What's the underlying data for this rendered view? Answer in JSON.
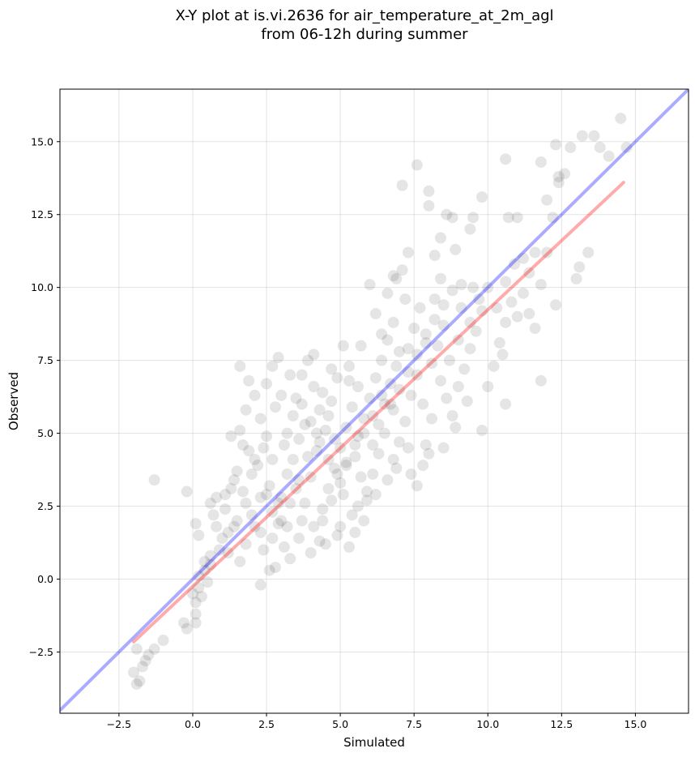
{
  "chart_data": {
    "type": "scatter",
    "title_line1": "X-Y plot at is.vi.2636 for air_temperature_at_2m_agl",
    "title_line2": "from 06-12h during summer",
    "xlabel": "Simulated",
    "ylabel": "Observed",
    "xlim": [
      -4.5,
      16.8
    ],
    "ylim": [
      -4.6,
      16.8
    ],
    "xticks": [
      -2.5,
      0.0,
      2.5,
      5.0,
      7.5,
      10.0,
      12.5,
      15.0
    ],
    "xtick_labels": [
      "−2.5",
      "0.0",
      "2.5",
      "5.0",
      "7.5",
      "10.0",
      "12.5",
      "15.0"
    ],
    "yticks": [
      -2.5,
      0.0,
      2.5,
      5.0,
      7.5,
      10.0,
      12.5,
      15.0
    ],
    "ytick_labels": [
      "−2.5",
      "0.0",
      "2.5",
      "5.0",
      "7.5",
      "10.0",
      "12.5",
      "15.0"
    ],
    "grid": true,
    "point_color": "#000000",
    "point_opacity": 0.1,
    "identity_line": {
      "color": "#0000ff",
      "x": [
        -4.5,
        16.8
      ],
      "y": [
        -4.5,
        16.8
      ]
    },
    "fit_line": {
      "color": "#ff0000",
      "x": [
        -2.0,
        14.6
      ],
      "y": [
        -2.15,
        13.6
      ]
    },
    "points": [
      [
        -2.0,
        -3.2
      ],
      [
        -1.9,
        -3.6
      ],
      [
        -1.8,
        -3.5
      ],
      [
        -1.7,
        -3.0
      ],
      [
        -1.5,
        -2.6
      ],
      [
        -1.3,
        -2.4
      ],
      [
        -1.9,
        -2.4
      ],
      [
        -1.6,
        -2.8
      ],
      [
        -1.0,
        -2.1
      ],
      [
        -1.3,
        3.4
      ],
      [
        -0.2,
        3.0
      ],
      [
        0.1,
        1.9
      ],
      [
        0.2,
        1.5
      ],
      [
        -0.3,
        -1.5
      ],
      [
        -0.2,
        -1.7
      ],
      [
        0.1,
        -1.2
      ],
      [
        0.1,
        -1.5
      ],
      [
        0.0,
        -0.5
      ],
      [
        0.1,
        -0.8
      ],
      [
        0.3,
        -0.6
      ],
      [
        0.2,
        0.1
      ],
      [
        0.4,
        0.3
      ],
      [
        0.6,
        0.5
      ],
      [
        0.5,
        -0.1
      ],
      [
        0.2,
        -0.3
      ],
      [
        0.7,
        2.2
      ],
      [
        0.8,
        2.8
      ],
      [
        0.6,
        2.6
      ],
      [
        1.0,
        1.4
      ],
      [
        1.2,
        0.9
      ],
      [
        1.4,
        1.8
      ],
      [
        1.6,
        0.6
      ],
      [
        1.8,
        1.2
      ],
      [
        1.1,
        2.4
      ],
      [
        1.3,
        3.1
      ],
      [
        1.5,
        3.7
      ],
      [
        1.7,
        4.6
      ],
      [
        1.6,
        5.1
      ],
      [
        1.8,
        5.8
      ],
      [
        1.9,
        6.8
      ],
      [
        1.6,
        7.3
      ],
      [
        1.3,
        4.9
      ],
      [
        2.1,
        6.3
      ],
      [
        2.3,
        5.5
      ],
      [
        2.5,
        6.7
      ],
      [
        2.7,
        7.3
      ],
      [
        2.9,
        7.6
      ],
      [
        2.5,
        4.9
      ],
      [
        2.2,
        3.9
      ],
      [
        2.0,
        2.2
      ],
      [
        2.3,
        1.6
      ],
      [
        2.5,
        2.9
      ],
      [
        2.7,
        2.3
      ],
      [
        2.9,
        1.9
      ],
      [
        3.1,
        1.1
      ],
      [
        3.3,
        0.7
      ],
      [
        2.6,
        0.3
      ],
      [
        2.3,
        -0.2
      ],
      [
        2.8,
        0.4
      ],
      [
        3.0,
        2.8
      ],
      [
        3.2,
        3.6
      ],
      [
        3.4,
        4.1
      ],
      [
        3.6,
        4.8
      ],
      [
        3.8,
        5.3
      ],
      [
        3.5,
        6.2
      ],
      [
        3.7,
        7.0
      ],
      [
        3.9,
        7.5
      ],
      [
        4.1,
        6.6
      ],
      [
        4.3,
        5.8
      ],
      [
        4.5,
        5.1
      ],
      [
        4.2,
        4.4
      ],
      [
        4.0,
        3.5
      ],
      [
        3.8,
        2.6
      ],
      [
        4.1,
        1.8
      ],
      [
        4.4,
        2.4
      ],
      [
        4.6,
        3.1
      ],
      [
        4.8,
        3.8
      ],
      [
        5.0,
        4.5
      ],
      [
        5.2,
        5.2
      ],
      [
        5.4,
        5.9
      ],
      [
        5.6,
        6.6
      ],
      [
        5.3,
        7.3
      ],
      [
        5.1,
        8.0
      ],
      [
        4.9,
        6.9
      ],
      [
        4.7,
        6.1
      ],
      [
        5.5,
        4.2
      ],
      [
        5.7,
        3.5
      ],
      [
        5.9,
        2.7
      ],
      [
        5.3,
        1.1
      ],
      [
        4.9,
        1.5
      ],
      [
        4.4,
        2.0
      ],
      [
        6.1,
        4.6
      ],
      [
        6.3,
        5.3
      ],
      [
        6.5,
        6.0
      ],
      [
        6.7,
        6.7
      ],
      [
        6.9,
        7.3
      ],
      [
        6.4,
        8.4
      ],
      [
        6.2,
        9.1
      ],
      [
        6.0,
        10.1
      ],
      [
        6.6,
        9.8
      ],
      [
        6.8,
        10.4
      ],
      [
        7.1,
        10.6
      ],
      [
        7.3,
        11.2
      ],
      [
        7.1,
        13.5
      ],
      [
        7.6,
        14.2
      ],
      [
        7.3,
        7.9
      ],
      [
        7.5,
        8.6
      ],
      [
        7.7,
        9.3
      ],
      [
        7.9,
        8.1
      ],
      [
        7.6,
        7.0
      ],
      [
        7.4,
        6.3
      ],
      [
        7.2,
        5.4
      ],
      [
        7.0,
        4.7
      ],
      [
        6.8,
        4.1
      ],
      [
        6.6,
        3.4
      ],
      [
        7.4,
        3.6
      ],
      [
        7.8,
        3.9
      ],
      [
        8.0,
        4.3
      ],
      [
        7.6,
        3.2
      ],
      [
        8.1,
        7.4
      ],
      [
        8.3,
        8.0
      ],
      [
        8.5,
        8.7
      ],
      [
        8.2,
        9.6
      ],
      [
        8.4,
        10.3
      ],
      [
        8.2,
        11.1
      ],
      [
        8.4,
        11.7
      ],
      [
        8.6,
        12.5
      ],
      [
        8.8,
        12.4
      ],
      [
        8.0,
        12.8
      ],
      [
        8.0,
        13.3
      ],
      [
        8.6,
        6.2
      ],
      [
        8.8,
        5.6
      ],
      [
        9.0,
        6.6
      ],
      [
        9.2,
        7.2
      ],
      [
        9.4,
        7.9
      ],
      [
        9.6,
        8.5
      ],
      [
        9.8,
        9.2
      ],
      [
        9.5,
        10.0
      ],
      [
        9.8,
        5.1
      ],
      [
        10.0,
        6.6
      ],
      [
        10.2,
        7.3
      ],
      [
        10.4,
        8.1
      ],
      [
        10.6,
        8.8
      ],
      [
        10.8,
        9.5
      ],
      [
        10.5,
        7.7
      ],
      [
        10.6,
        6.0
      ],
      [
        11.0,
        9.0
      ],
      [
        11.2,
        9.8
      ],
      [
        11.4,
        10.5
      ],
      [
        11.6,
        11.2
      ],
      [
        11.8,
        10.1
      ],
      [
        11.4,
        9.1
      ],
      [
        11.6,
        8.6
      ],
      [
        11.8,
        6.8
      ],
      [
        12.0,
        11.2
      ],
      [
        12.2,
        12.4
      ],
      [
        12.0,
        13.0
      ],
      [
        12.4,
        13.6
      ],
      [
        12.3,
        9.4
      ],
      [
        12.3,
        14.9
      ],
      [
        12.6,
        13.9
      ],
      [
        12.8,
        14.8
      ],
      [
        13.0,
        10.3
      ],
      [
        13.1,
        10.7
      ],
      [
        13.2,
        15.2
      ],
      [
        13.4,
        11.2
      ],
      [
        13.6,
        15.2
      ],
      [
        13.8,
        14.8
      ],
      [
        14.1,
        14.5
      ],
      [
        14.5,
        15.8
      ],
      [
        14.7,
        14.8
      ],
      [
        9.5,
        12.4
      ],
      [
        9.4,
        12.0
      ],
      [
        9.8,
        13.1
      ],
      [
        10.6,
        14.4
      ],
      [
        10.7,
        12.4
      ],
      [
        11.0,
        12.4
      ],
      [
        11.8,
        14.3
      ],
      [
        12.4,
        13.8
      ],
      [
        6.9,
        10.3
      ],
      [
        7.2,
        9.6
      ],
      [
        8.9,
        11.3
      ],
      [
        9.1,
        10.1
      ],
      [
        5.7,
        8.0
      ],
      [
        5.3,
        6.8
      ],
      [
        4.7,
        7.2
      ],
      [
        4.1,
        7.7
      ],
      [
        3.3,
        7.0
      ],
      [
        3.0,
        6.3
      ],
      [
        1.9,
        4.4
      ],
      [
        2.1,
        4.1
      ],
      [
        2.8,
        5.9
      ],
      [
        3.2,
        5.0
      ],
      [
        3.5,
        3.1
      ],
      [
        3.7,
        2.0
      ],
      [
        4.3,
        1.3
      ],
      [
        4.7,
        2.7
      ],
      [
        5.0,
        3.3
      ],
      [
        5.2,
        4.0
      ],
      [
        5.6,
        4.9
      ],
      [
        5.8,
        5.5
      ],
      [
        6.0,
        6.2
      ],
      [
        6.2,
        6.9
      ],
      [
        6.4,
        7.5
      ],
      [
        6.6,
        8.2
      ],
      [
        6.8,
        8.8
      ],
      [
        7.0,
        7.8
      ],
      [
        6.8,
        5.8
      ],
      [
        6.5,
        5.0
      ],
      [
        6.3,
        4.3
      ],
      [
        6.1,
        3.6
      ],
      [
        5.9,
        3.0
      ],
      [
        5.6,
        2.5
      ],
      [
        5.4,
        2.2
      ],
      [
        5.1,
        2.9
      ],
      [
        4.8,
        4.8
      ],
      [
        4.6,
        5.6
      ],
      [
        4.4,
        6.4
      ],
      [
        4.2,
        5.0
      ],
      [
        3.9,
        4.2
      ],
      [
        3.6,
        3.4
      ],
      [
        3.3,
        2.6
      ],
      [
        3.0,
        2.0
      ],
      [
        2.7,
        1.4
      ],
      [
        2.4,
        1.0
      ],
      [
        2.1,
        1.8
      ],
      [
        1.8,
        2.6
      ],
      [
        1.5,
        2.0
      ],
      [
        1.2,
        1.6
      ],
      [
        0.9,
        1.0
      ],
      [
        0.6,
        0.8
      ],
      [
        0.4,
        0.6
      ],
      [
        0.8,
        1.8
      ],
      [
        1.1,
        2.9
      ],
      [
        1.4,
        3.4
      ],
      [
        1.7,
        3.0
      ],
      [
        2.0,
        3.6
      ],
      [
        2.4,
        4.5
      ],
      [
        2.7,
        4.1
      ],
      [
        3.1,
        4.6
      ],
      [
        3.4,
        5.6
      ],
      [
        3.7,
        6.0
      ],
      [
        4.0,
        5.4
      ],
      [
        4.3,
        4.7
      ],
      [
        4.6,
        4.1
      ],
      [
        4.9,
        3.6
      ],
      [
        5.2,
        3.9
      ],
      [
        5.5,
        4.6
      ],
      [
        5.8,
        5.0
      ],
      [
        6.1,
        5.6
      ],
      [
        6.4,
        6.3
      ],
      [
        6.7,
        6.0
      ],
      [
        7.0,
        6.5
      ],
      [
        7.3,
        7.1
      ],
      [
        7.6,
        7.7
      ],
      [
        7.9,
        8.4
      ],
      [
        8.2,
        8.9
      ],
      [
        8.5,
        9.4
      ],
      [
        8.8,
        9.9
      ],
      [
        9.1,
        9.3
      ],
      [
        9.4,
        8.8
      ],
      [
        9.7,
        9.6
      ],
      [
        10.0,
        10.0
      ],
      [
        10.3,
        9.3
      ],
      [
        10.6,
        10.2
      ],
      [
        10.9,
        10.8
      ],
      [
        11.2,
        11.0
      ],
      [
        7.8,
        6.0
      ],
      [
        8.1,
        5.5
      ],
      [
        8.4,
        6.8
      ],
      [
        8.7,
        7.5
      ],
      [
        9.0,
        8.2
      ],
      [
        9.3,
        6.1
      ],
      [
        8.9,
        5.2
      ],
      [
        8.5,
        4.5
      ],
      [
        7.9,
        4.6
      ],
      [
        7.3,
        4.5
      ],
      [
        6.9,
        3.8
      ],
      [
        6.2,
        2.9
      ],
      [
        5.8,
        2.0
      ],
      [
        5.5,
        1.6
      ],
      [
        5.0,
        1.8
      ],
      [
        4.5,
        1.2
      ],
      [
        4.0,
        0.9
      ],
      [
        3.6,
        1.4
      ],
      [
        3.2,
        1.8
      ],
      [
        2.9,
        2.6
      ],
      [
        2.6,
        3.2
      ],
      [
        2.3,
        2.8
      ]
    ]
  }
}
